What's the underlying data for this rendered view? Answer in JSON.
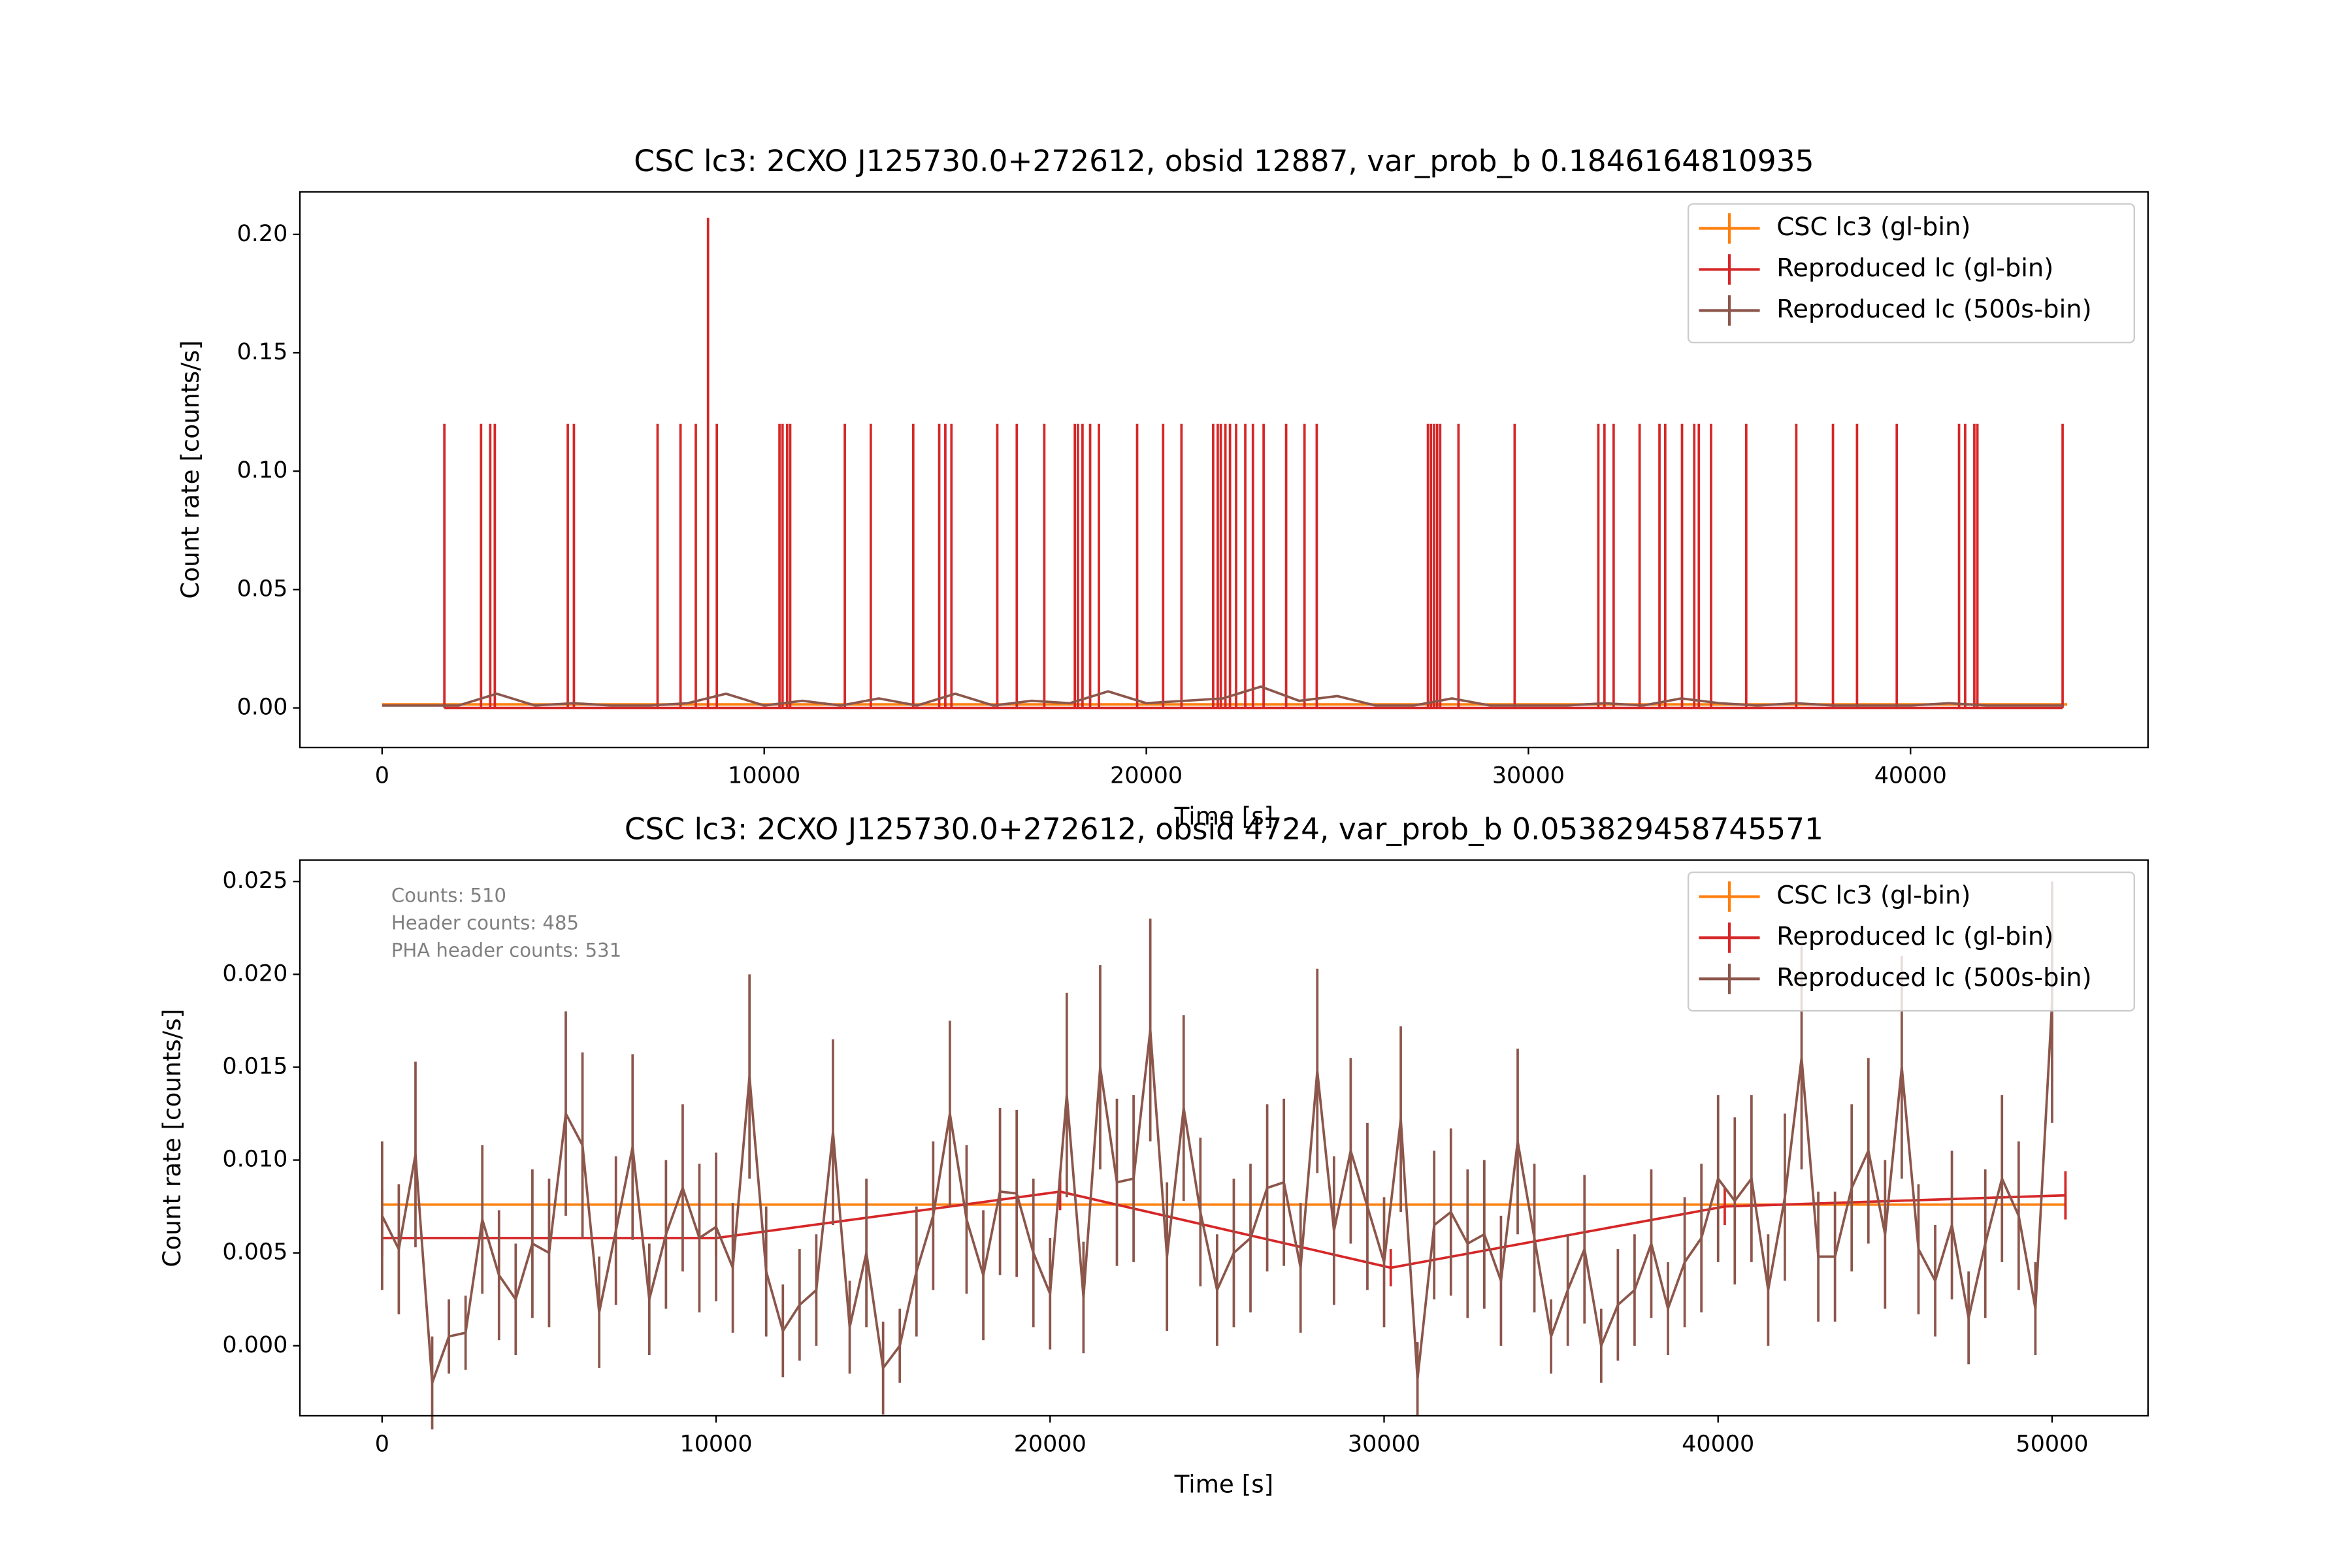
{
  "chart_data": [
    {
      "type": "line",
      "title": "CSC lc3: 2CXO J125730.0+272612, obsid 12887, var_prob_b 0.1846164810935",
      "x_label": "Time [s]",
      "y_label": "Count rate [counts/s]",
      "xlim": [
        -2151,
        46215
      ],
      "ylim": [
        -0.0167,
        0.218
      ],
      "xticks": [
        0,
        10000,
        20000,
        30000,
        40000
      ],
      "yticks": [
        {
          "value": 0,
          "label": "0.00"
        },
        {
          "value": 0.05,
          "label": "0.05"
        },
        {
          "value": 0.1,
          "label": "0.10"
        },
        {
          "value": 0.15,
          "label": "0.15"
        },
        {
          "value": 0.2,
          "label": "0.20"
        }
      ],
      "legend": "upper right",
      "series": [
        {
          "name": "CSC lc3 (gl-bin)",
          "color": "#ff7f0e",
          "x": [
            0,
            44100
          ],
          "values": [
            0.0015,
            0.0015
          ]
        },
        {
          "name": "Reproduced lc (gl-bin)",
          "color": "#d62728",
          "drawstyle": "stem",
          "x": [
            1630,
            2590,
            2830,
            2950,
            4860,
            5020,
            7210,
            7810,
            8210,
            8530,
            8760,
            10400,
            10480,
            10600,
            10680,
            12110,
            12790,
            13900,
            14580,
            14740,
            14900,
            16100,
            16610,
            17330,
            18130,
            18210,
            18330,
            18530,
            18760,
            19760,
            20440,
            20920,
            21750,
            21870,
            21950,
            22070,
            22190,
            22350,
            22590,
            22790,
            23070,
            23660,
            24140,
            24460,
            27370,
            27450,
            27530,
            27610,
            27690,
            28170,
            29640,
            31830,
            31990,
            32230,
            32910,
            33430,
            33580,
            34020,
            34340,
            34460,
            34780,
            35700,
            37010,
            37970,
            38600,
            39640,
            41270,
            41430,
            41670,
            41750,
            43980
          ],
          "values": [
            0.12,
            0.12,
            0.12,
            0.12,
            0.12,
            0.12,
            0.12,
            0.12,
            0.12,
            0.207,
            0.12,
            0.12,
            0.12,
            0.12,
            0.12,
            0.12,
            0.12,
            0.12,
            0.12,
            0.12,
            0.12,
            0.12,
            0.12,
            0.12,
            0.12,
            0.12,
            0.12,
            0.12,
            0.12,
            0.12,
            0.12,
            0.12,
            0.12,
            0.12,
            0.12,
            0.12,
            0.12,
            0.12,
            0.12,
            0.12,
            0.12,
            0.12,
            0.12,
            0.12,
            0.12,
            0.12,
            0.12,
            0.12,
            0.12,
            0.12,
            0.12,
            0.12,
            0.12,
            0.12,
            0.12,
            0.12,
            0.12,
            0.12,
            0.12,
            0.12,
            0.12,
            0.12,
            0.12,
            0.12,
            0.12,
            0.12,
            0.12,
            0.12,
            0.12,
            0.12,
            0.12
          ]
        },
        {
          "name": "Reproduced lc (500s-bin)",
          "color": "#8c564b",
          "x": [
            0,
            1000,
            2000,
            3000,
            4000,
            5000,
            6000,
            7000,
            8000,
            9000,
            10000,
            11000,
            12000,
            13000,
            14000,
            15000,
            16000,
            17000,
            18000,
            19000,
            20000,
            21000,
            22000,
            23000,
            24000,
            25000,
            26000,
            27000,
            28000,
            29000,
            30000,
            31000,
            32000,
            33000,
            34000,
            35000,
            36000,
            37000,
            38000,
            39000,
            40000,
            41000,
            42000,
            43000,
            44000
          ],
          "values": [
            0.001,
            0.001,
            0.001,
            0.006,
            0.001,
            0.002,
            0.001,
            0.001,
            0.002,
            0.006,
            0.001,
            0.003,
            0.001,
            0.004,
            0.001,
            0.006,
            0.001,
            0.003,
            0.002,
            0.007,
            0.002,
            0.003,
            0.004,
            0.009,
            0.003,
            0.005,
            0.001,
            0.001,
            0.004,
            0.001,
            0.001,
            0.001,
            0.002,
            0.001,
            0.004,
            0.002,
            0.001,
            0.002,
            0.001,
            0.001,
            0.001,
            0.002,
            0.001,
            0.001,
            0.001
          ]
        }
      ]
    },
    {
      "type": "line",
      "title": "CSC lc3: 2CXO J125730.0+272612, obsid 4724, var_prob_b 0.053829458745571",
      "x_label": "Time [s]",
      "y_label": "Count rate [counts/s]",
      "xlim": [
        -2461,
        52872
      ],
      "ylim": [
        -0.00377,
        0.02615
      ],
      "xticks": [
        0,
        10000,
        20000,
        30000,
        40000,
        50000
      ],
      "yticks": [
        {
          "value": 0,
          "label": "0.000"
        },
        {
          "value": 0.005,
          "label": "0.005"
        },
        {
          "value": 0.01,
          "label": "0.010"
        },
        {
          "value": 0.015,
          "label": "0.015"
        },
        {
          "value": 0.02,
          "label": "0.020"
        },
        {
          "value": 0.025,
          "label": "0.025"
        }
      ],
      "legend": "upper right",
      "annotations": [
        "Counts: 510",
        "Header counts: 485",
        "PHA header counts: 531"
      ],
      "series": [
        {
          "name": "CSC lc3 (gl-bin)",
          "color": "#ff7f0e",
          "x": [
            0,
            50400
          ],
          "values": [
            0.0076,
            0.0076
          ],
          "errors": [
            0.0008,
            0.0008
          ]
        },
        {
          "name": "Reproduced lc (gl-bin)",
          "color": "#d62728",
          "x": [
            0,
            10000,
            20300,
            30200,
            40200,
            50400
          ],
          "values": [
            0.0058,
            0.0058,
            0.0083,
            0.0042,
            0.0075,
            0.0081
          ],
          "errors": [
            0.001,
            0.001,
            0.001,
            0.001,
            0.001,
            0.0013
          ]
        },
        {
          "name": "Reproduced lc (500s-bin)",
          "color": "#8c564b",
          "x": [
            0,
            500,
            1000,
            1500,
            2000,
            2500,
            3000,
            3500,
            4000,
            4500,
            5000,
            5500,
            6000,
            6500,
            7000,
            7500,
            8000,
            8500,
            9000,
            9500,
            10000,
            10500,
            11000,
            11500,
            12000,
            12500,
            13000,
            13500,
            14000,
            14500,
            15000,
            15500,
            16000,
            16500,
            17000,
            17500,
            18000,
            18500,
            19000,
            19500,
            20000,
            20500,
            21000,
            21500,
            22000,
            22500,
            23000,
            23500,
            24000,
            24500,
            25000,
            25500,
            26000,
            26500,
            27000,
            27500,
            28000,
            28500,
            29000,
            29500,
            30000,
            30500,
            31000,
            31500,
            32000,
            32500,
            33000,
            33500,
            34000,
            34500,
            35000,
            35500,
            36000,
            36500,
            37000,
            37500,
            38000,
            38500,
            39000,
            39500,
            40000,
            40500,
            41000,
            41500,
            42000,
            42500,
            43000,
            43500,
            44000,
            44500,
            45000,
            45500,
            46000,
            46500,
            47000,
            47500,
            48000,
            48500,
            49000,
            49500,
            50000
          ],
          "values": [
            0.007,
            0.0052,
            0.0103,
            -0.002,
            0.0005,
            0.0007,
            0.0068,
            0.0038,
            0.0025,
            0.0055,
            0.005,
            0.0125,
            0.0108,
            0.0018,
            0.0062,
            0.0107,
            0.0025,
            0.006,
            0.0085,
            0.0058,
            0.0064,
            0.0042,
            0.0145,
            0.004,
            0.0008,
            0.0022,
            0.003,
            0.0115,
            0.001,
            0.005,
            -0.0012,
            0.0,
            0.004,
            0.007,
            0.0125,
            0.0068,
            0.0038,
            0.0083,
            0.0082,
            0.005,
            0.0028,
            0.0135,
            0.0026,
            0.015,
            0.0088,
            0.009,
            0.017,
            0.0048,
            0.0128,
            0.0072,
            0.003,
            0.005,
            0.0058,
            0.0085,
            0.0088,
            0.0042,
            0.0148,
            0.0062,
            0.0105,
            0.0075,
            0.0045,
            0.0122,
            -0.0018,
            0.0065,
            0.0072,
            0.0055,
            0.006,
            0.0035,
            0.011,
            0.0058,
            0.0005,
            0.003,
            0.0052,
            0.0,
            0.0022,
            0.003,
            0.0055,
            0.002,
            0.0045,
            0.0058,
            0.009,
            0.0078,
            0.009,
            0.003,
            0.008,
            0.0155,
            0.0048,
            0.0048,
            0.0085,
            0.0105,
            0.006,
            0.015,
            0.0052,
            0.0035,
            0.0065,
            0.0015,
            0.0055,
            0.009,
            0.007,
            0.002,
            0.0185
          ],
          "errors": [
            0.004,
            0.0035,
            0.005,
            0.0025,
            0.002,
            0.002,
            0.004,
            0.0035,
            0.003,
            0.004,
            0.004,
            0.0055,
            0.005,
            0.003,
            0.004,
            0.005,
            0.003,
            0.004,
            0.0045,
            0.004,
            0.004,
            0.0035,
            0.0055,
            0.0035,
            0.0025,
            0.003,
            0.003,
            0.005,
            0.0025,
            0.004,
            0.0025,
            0.002,
            0.0035,
            0.004,
            0.005,
            0.004,
            0.0035,
            0.0045,
            0.0045,
            0.004,
            0.003,
            0.0055,
            0.003,
            0.0055,
            0.0045,
            0.0045,
            0.006,
            0.004,
            0.005,
            0.004,
            0.003,
            0.004,
            0.004,
            0.0045,
            0.0045,
            0.0035,
            0.0055,
            0.004,
            0.005,
            0.0045,
            0.0035,
            0.005,
            0.002,
            0.004,
            0.0045,
            0.004,
            0.004,
            0.0035,
            0.005,
            0.004,
            0.002,
            0.003,
            0.004,
            0.002,
            0.003,
            0.003,
            0.004,
            0.0025,
            0.0035,
            0.004,
            0.0045,
            0.0045,
            0.0045,
            0.003,
            0.0045,
            0.006,
            0.0035,
            0.0035,
            0.0045,
            0.005,
            0.004,
            0.006,
            0.0035,
            0.003,
            0.004,
            0.0025,
            0.004,
            0.0045,
            0.004,
            0.0025,
            0.0065
          ]
        }
      ]
    }
  ]
}
